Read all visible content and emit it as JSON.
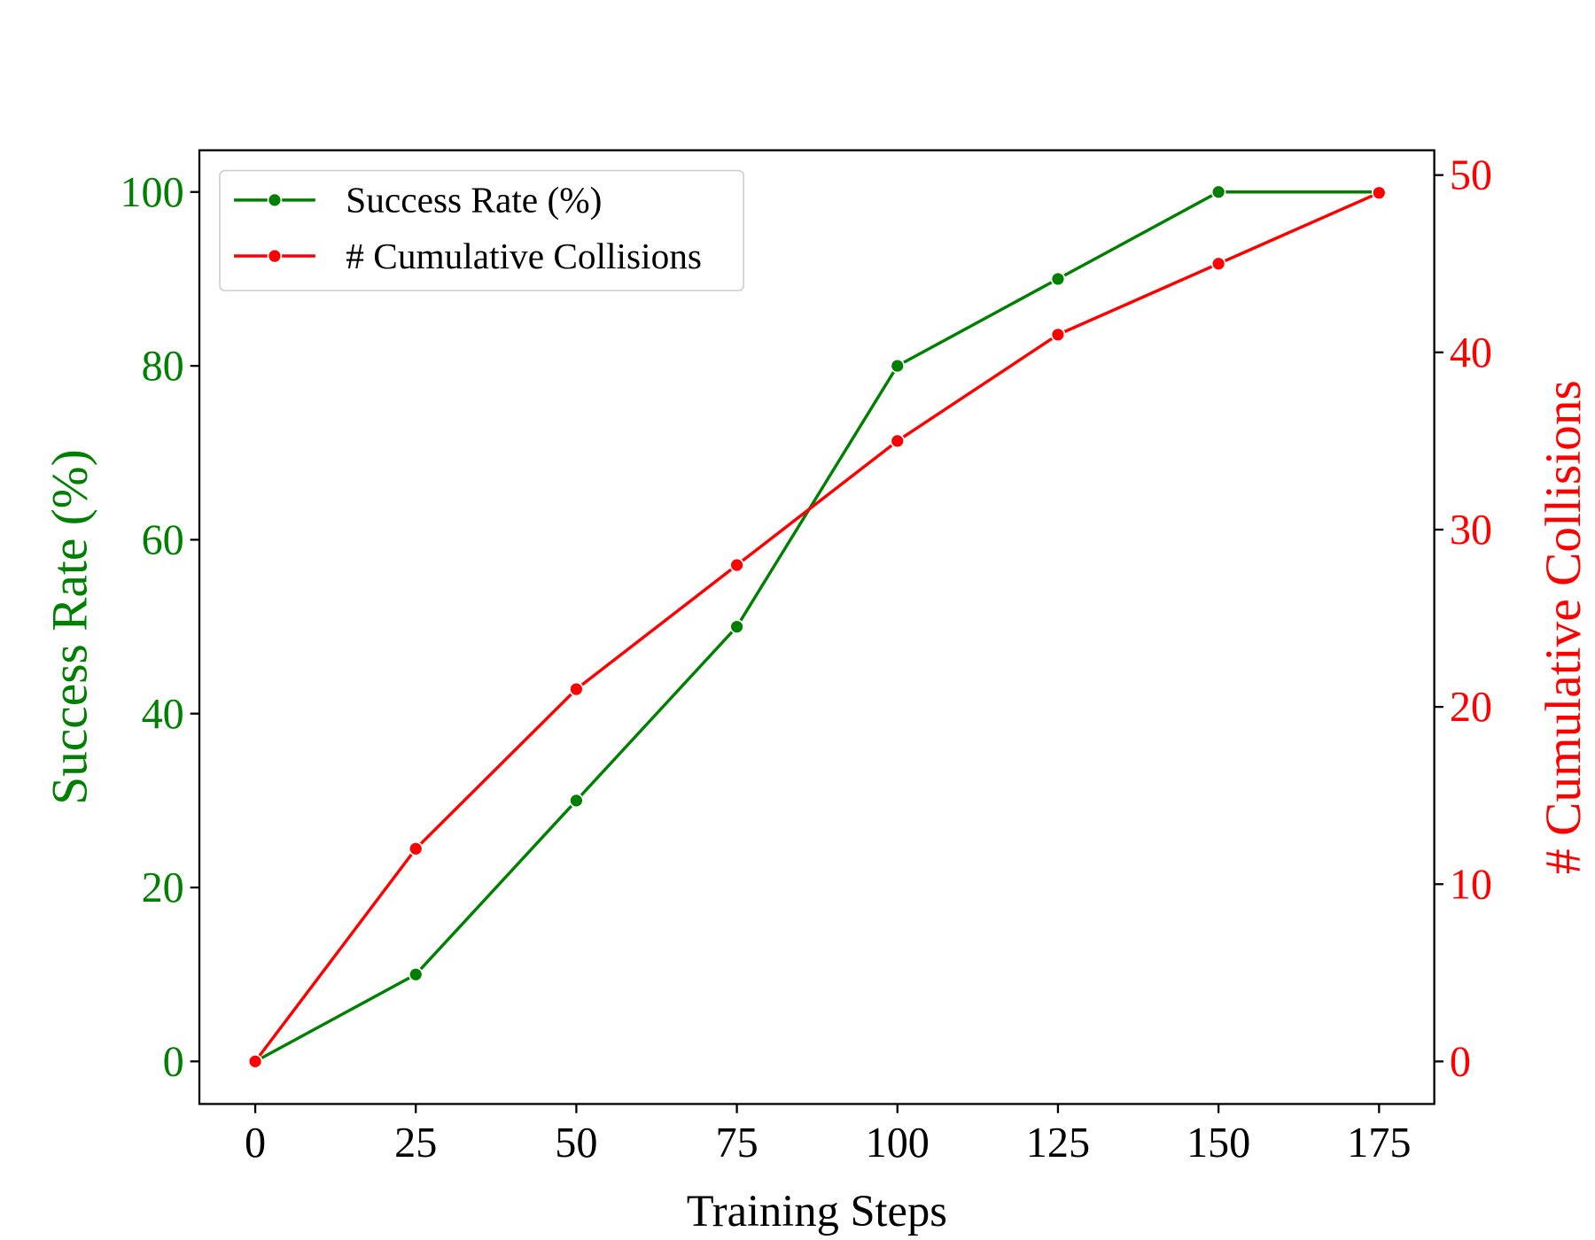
{
  "chart_data": {
    "type": "line",
    "xlabel": "Training Steps",
    "ylabel_left": "Success Rate (%)",
    "ylabel_right": "# Cumulative Collisions",
    "x": [
      0,
      25,
      50,
      75,
      100,
      125,
      150,
      175
    ],
    "xticks": [
      0,
      25,
      50,
      75,
      100,
      125,
      150,
      175
    ],
    "xlim": [
      -8.7,
      183.6
    ],
    "ylim_left": [
      -4.9,
      104.8
    ],
    "ylim_right": [
      -2.4,
      51.4
    ],
    "yticks_left": [
      0,
      20,
      40,
      60,
      80,
      100
    ],
    "yticks_right": [
      0,
      10,
      20,
      30,
      40,
      50
    ],
    "grid": false,
    "legend_placement": "top-left",
    "series": [
      {
        "name": "Success Rate (%)",
        "axis": "left",
        "color": "#008000",
        "values": [
          0,
          10,
          30,
          50,
          80,
          90,
          100,
          100
        ]
      },
      {
        "name": "# Cumulative Collisions",
        "axis": "right",
        "color": "#ff0000",
        "values": [
          0,
          12,
          21,
          28,
          35,
          41,
          45,
          49
        ]
      }
    ]
  }
}
